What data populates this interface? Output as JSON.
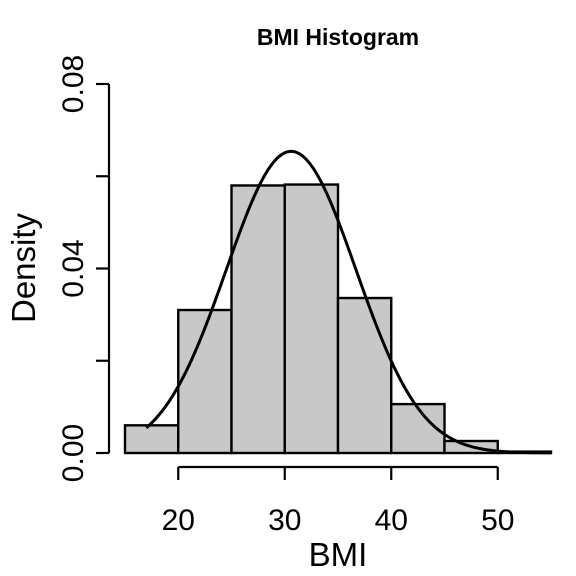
{
  "chart_data": {
    "type": "bar",
    "title": "BMI Histogram",
    "xlabel": "BMI",
    "ylabel": "Density",
    "xlim": [
      15,
      55
    ],
    "ylim": [
      0,
      0.08
    ],
    "x_ticks": [
      20,
      30,
      40,
      50
    ],
    "y_ticks": [
      0,
      0.02,
      0.04,
      0.06,
      0.08
    ],
    "y_tick_labels": [
      "0.00",
      "",
      "0.04",
      "",
      "0.08"
    ],
    "bins": [
      {
        "start": 15,
        "end": 20,
        "density": 0.006
      },
      {
        "start": 20,
        "end": 25,
        "density": 0.031
      },
      {
        "start": 25,
        "end": 30,
        "density": 0.058
      },
      {
        "start": 30,
        "end": 35,
        "density": 0.0582
      },
      {
        "start": 35,
        "end": 40,
        "density": 0.0336
      },
      {
        "start": 40,
        "end": 45,
        "density": 0.0106
      },
      {
        "start": 45,
        "end": 50,
        "density": 0.0026
      },
      {
        "start": 50,
        "end": 55,
        "density": 0.0003
      }
    ],
    "density_curve": {
      "distribution": "normal",
      "mean": 30.6,
      "sd": 6.1,
      "from": 17,
      "to": 55
    },
    "grid": false,
    "legend": "none",
    "colors": {
      "bar_fill": "#c8c8c8",
      "bar_stroke": "#000000",
      "curve": "#000000"
    }
  }
}
